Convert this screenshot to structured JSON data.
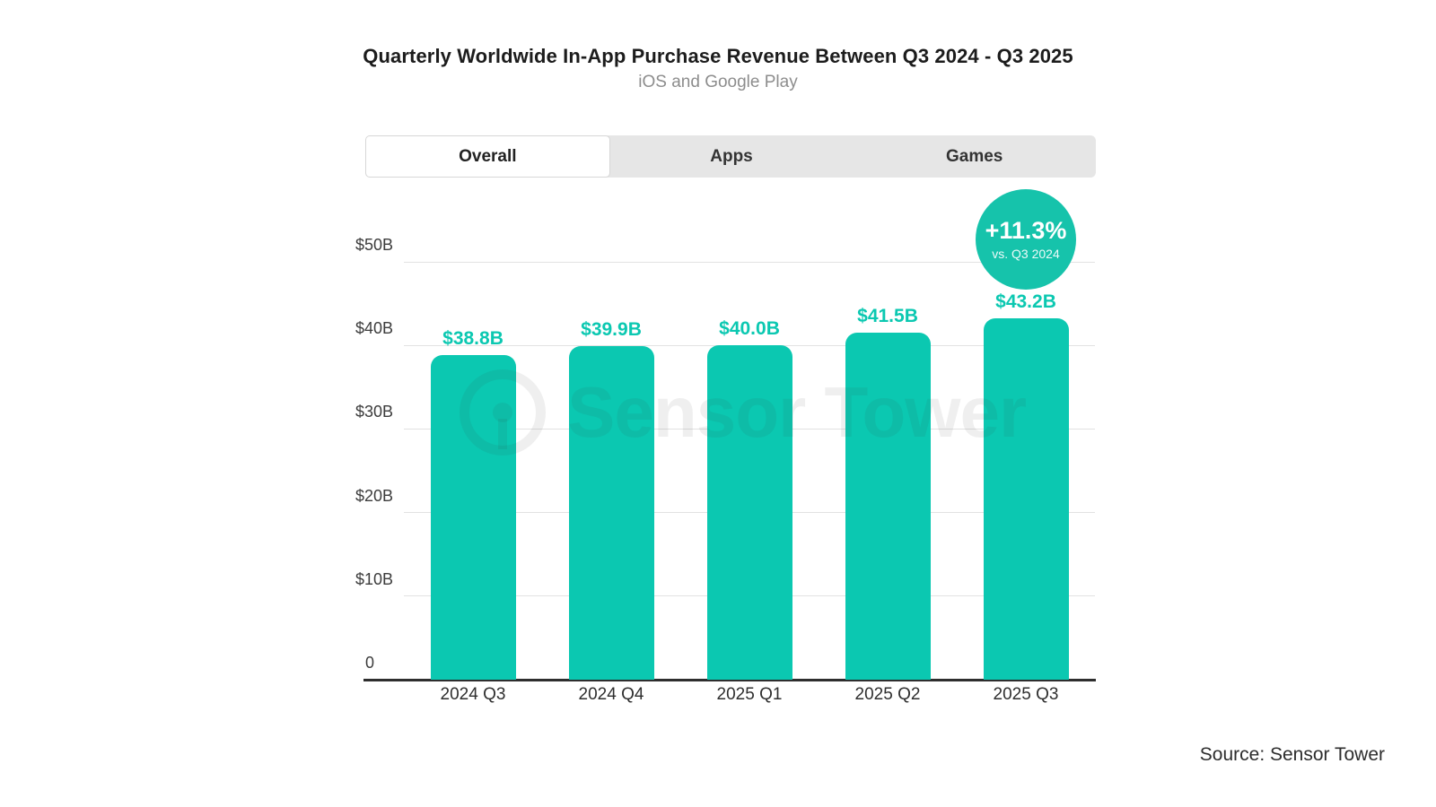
{
  "page": {
    "title": "Quarterly Worldwide In-App Purchase Revenue Between Q3 2024 - Q3 2025",
    "subtitle": "iOS and Google Play",
    "source": "Source: Sensor Tower",
    "watermark": "Sensor Tower"
  },
  "tabs": {
    "items": [
      "Overall",
      "Apps",
      "Games"
    ],
    "active": "Overall"
  },
  "badge": {
    "value": "+11.3%",
    "caption": "vs. Q3 2024"
  },
  "colors": {
    "accent": "#0bc8b1",
    "badge": "#16c3ab",
    "grid": "#e2e2e2",
    "axis": "#2e2e2e",
    "tab_bar_bg": "#e6e6e6",
    "tab_active_bg": "#ffffff",
    "title_text": "#1c1c1c",
    "subtitle_text": "#8d8d8d",
    "tick_text": "#3c3c3c"
  },
  "chart_data": {
    "type": "bar",
    "title": "Quarterly Worldwide In-App Purchase Revenue Between Q3 2024 - Q3 2025",
    "subtitle": "iOS and Google Play",
    "categories": [
      "2024 Q3",
      "2024 Q4",
      "2025 Q1",
      "2025 Q2",
      "2025 Q3"
    ],
    "values": [
      38.8,
      39.9,
      40.0,
      41.5,
      43.2
    ],
    "value_labels": [
      "$38.8B",
      "$39.9B",
      "$40.0B",
      "$41.5B",
      "$43.2B"
    ],
    "xlabel": "",
    "ylabel": "",
    "ylim": [
      0,
      50
    ],
    "y_ticks": [
      {
        "value": 0,
        "label": "0"
      },
      {
        "value": 10,
        "label": "$10B"
      },
      {
        "value": 20,
        "label": "$20B"
      },
      {
        "value": 30,
        "label": "$30B"
      },
      {
        "value": 40,
        "label": "$40B"
      },
      {
        "value": 50,
        "label": "$50B"
      }
    ],
    "grid": true,
    "legend": false,
    "annotation": {
      "text": "+11.3%",
      "caption": "vs. Q3 2024",
      "applies_to": "2025 Q3"
    }
  }
}
